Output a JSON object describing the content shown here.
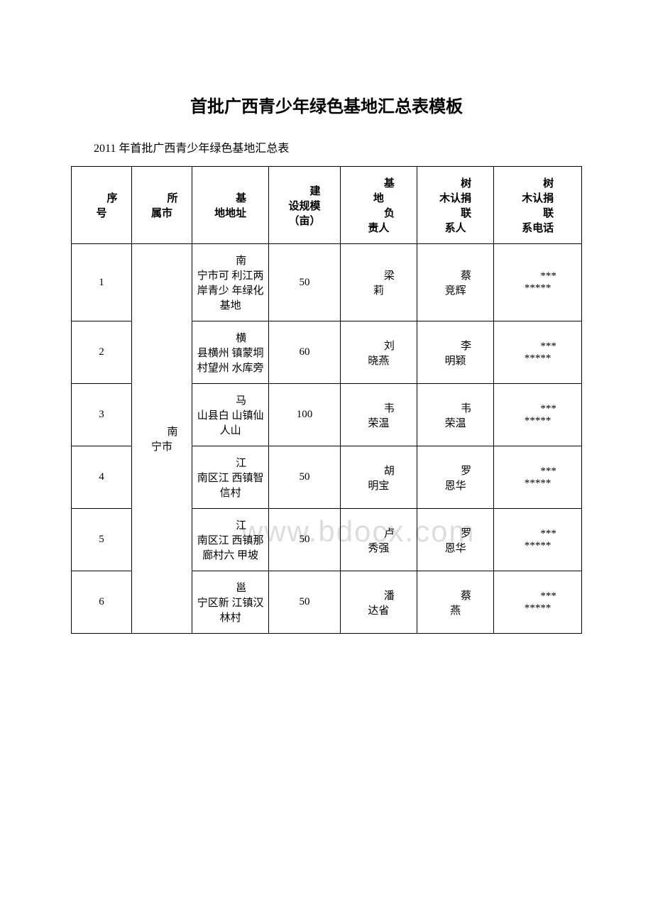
{
  "title": "首批广西青少年绿色基地汇总表模板",
  "subtitle": "2011 年首批广西青少年绿色基地汇总表",
  "watermark": "www.bdocx.com",
  "table": {
    "headers": {
      "col1_line1": "序",
      "col1_line2": "号",
      "col2_line1": "所",
      "col2_line2": "属市",
      "col3_line1": "基",
      "col3_line2": "地地址",
      "col4_line1": "建",
      "col4_line2": "设规模",
      "col4_line3": "（亩）",
      "col5_line1": "基",
      "col5_line2": "地",
      "col5_line3": "负",
      "col5_line4": "责人",
      "col6_line1": "树",
      "col6_line2": "木认捐",
      "col6_line3": "联",
      "col6_line4": "系人",
      "col7_line1": "树",
      "col7_line2": "木认捐",
      "col7_line3": "联",
      "col7_line4": "系电话"
    },
    "city_merged": "南宁市",
    "rows": [
      {
        "num": "1",
        "address_l1": "南",
        "address_l2": "宁市可",
        "address_l3": "利江两",
        "address_l4": "岸青少",
        "address_l5": "年绿化",
        "address_l6": "基地",
        "scale": "50",
        "leader_l1": "梁",
        "leader_l2": "莉",
        "contact_l1": "蔡",
        "contact_l2": "竞辉",
        "phone_l1": "***",
        "phone_l2": "*****"
      },
      {
        "num": "2",
        "address_l1": "横",
        "address_l2": "县横州",
        "address_l3": "镇蒙垌",
        "address_l4": "村望州",
        "address_l5": "水库旁",
        "scale": "60",
        "leader_l1": "刘",
        "leader_l2": "晓燕",
        "contact_l1": "李",
        "contact_l2": "明颖",
        "phone_l1": "***",
        "phone_l2": "*****"
      },
      {
        "num": "3",
        "address_l1": "马",
        "address_l2": "山县白",
        "address_l3": "山镇仙",
        "address_l4": "人山",
        "scale": "100",
        "leader_l1": "韦",
        "leader_l2": "荣温",
        "contact_l1": "韦",
        "contact_l2": "荣温",
        "phone_l1": "***",
        "phone_l2": "*****"
      },
      {
        "num": "4",
        "address_l1": "江",
        "address_l2": "南区江",
        "address_l3": "西镇智",
        "address_l4": "信村",
        "scale": "50",
        "leader_l1": "胡",
        "leader_l2": "明宝",
        "contact_l1": "罗",
        "contact_l2": "恩华",
        "phone_l1": "***",
        "phone_l2": "*****"
      },
      {
        "num": "5",
        "address_l1": "江",
        "address_l2": "南区江",
        "address_l3": "西镇那",
        "address_l4": "廊村六",
        "address_l5": "甲坡",
        "scale": "50",
        "leader_l1": "卢",
        "leader_l2": "秀强",
        "contact_l1": "罗",
        "contact_l2": "恩华",
        "phone_l1": "***",
        "phone_l2": "*****"
      },
      {
        "num": "6",
        "address_l1": "邕",
        "address_l2": "宁区新",
        "address_l3": "江镇汉",
        "address_l4": "林村",
        "scale": "50",
        "leader_l1": "潘",
        "leader_l2": "达省",
        "contact_l1": "蔡",
        "contact_l2": "燕",
        "phone_l1": "***",
        "phone_l2": "*****"
      }
    ]
  }
}
